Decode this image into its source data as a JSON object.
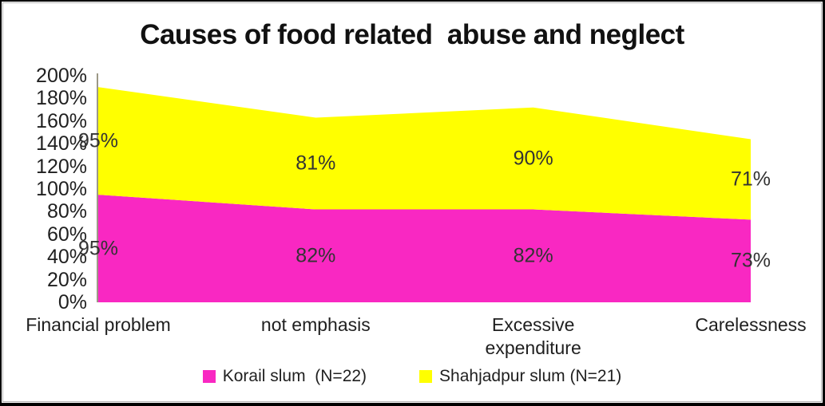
{
  "chart_data": {
    "type": "area",
    "stacked": true,
    "title": "Causes of food related  abuse and neglect",
    "categories": [
      "Financial problem",
      "not emphasis",
      "Excessive\nexpenditure",
      "Carelessness"
    ],
    "series": [
      {
        "name": "Korail slum  (N=22)",
        "values": [
          95,
          82,
          82,
          73
        ],
        "color": "#F928C2"
      },
      {
        "name": "Shahjadpur slum (N=21)",
        "values": [
          95,
          81,
          90,
          71
        ],
        "color": "#FFFF00"
      }
    ],
    "xlabel": "",
    "ylabel": "",
    "ylim": [
      0,
      200
    ],
    "ytick_step": 20,
    "ytick_suffix": "%",
    "data_label_suffix": "%",
    "grid": false,
    "legend_position": "bottom",
    "axis_color": "#9c9886",
    "plot_bg": "#ffffff"
  }
}
